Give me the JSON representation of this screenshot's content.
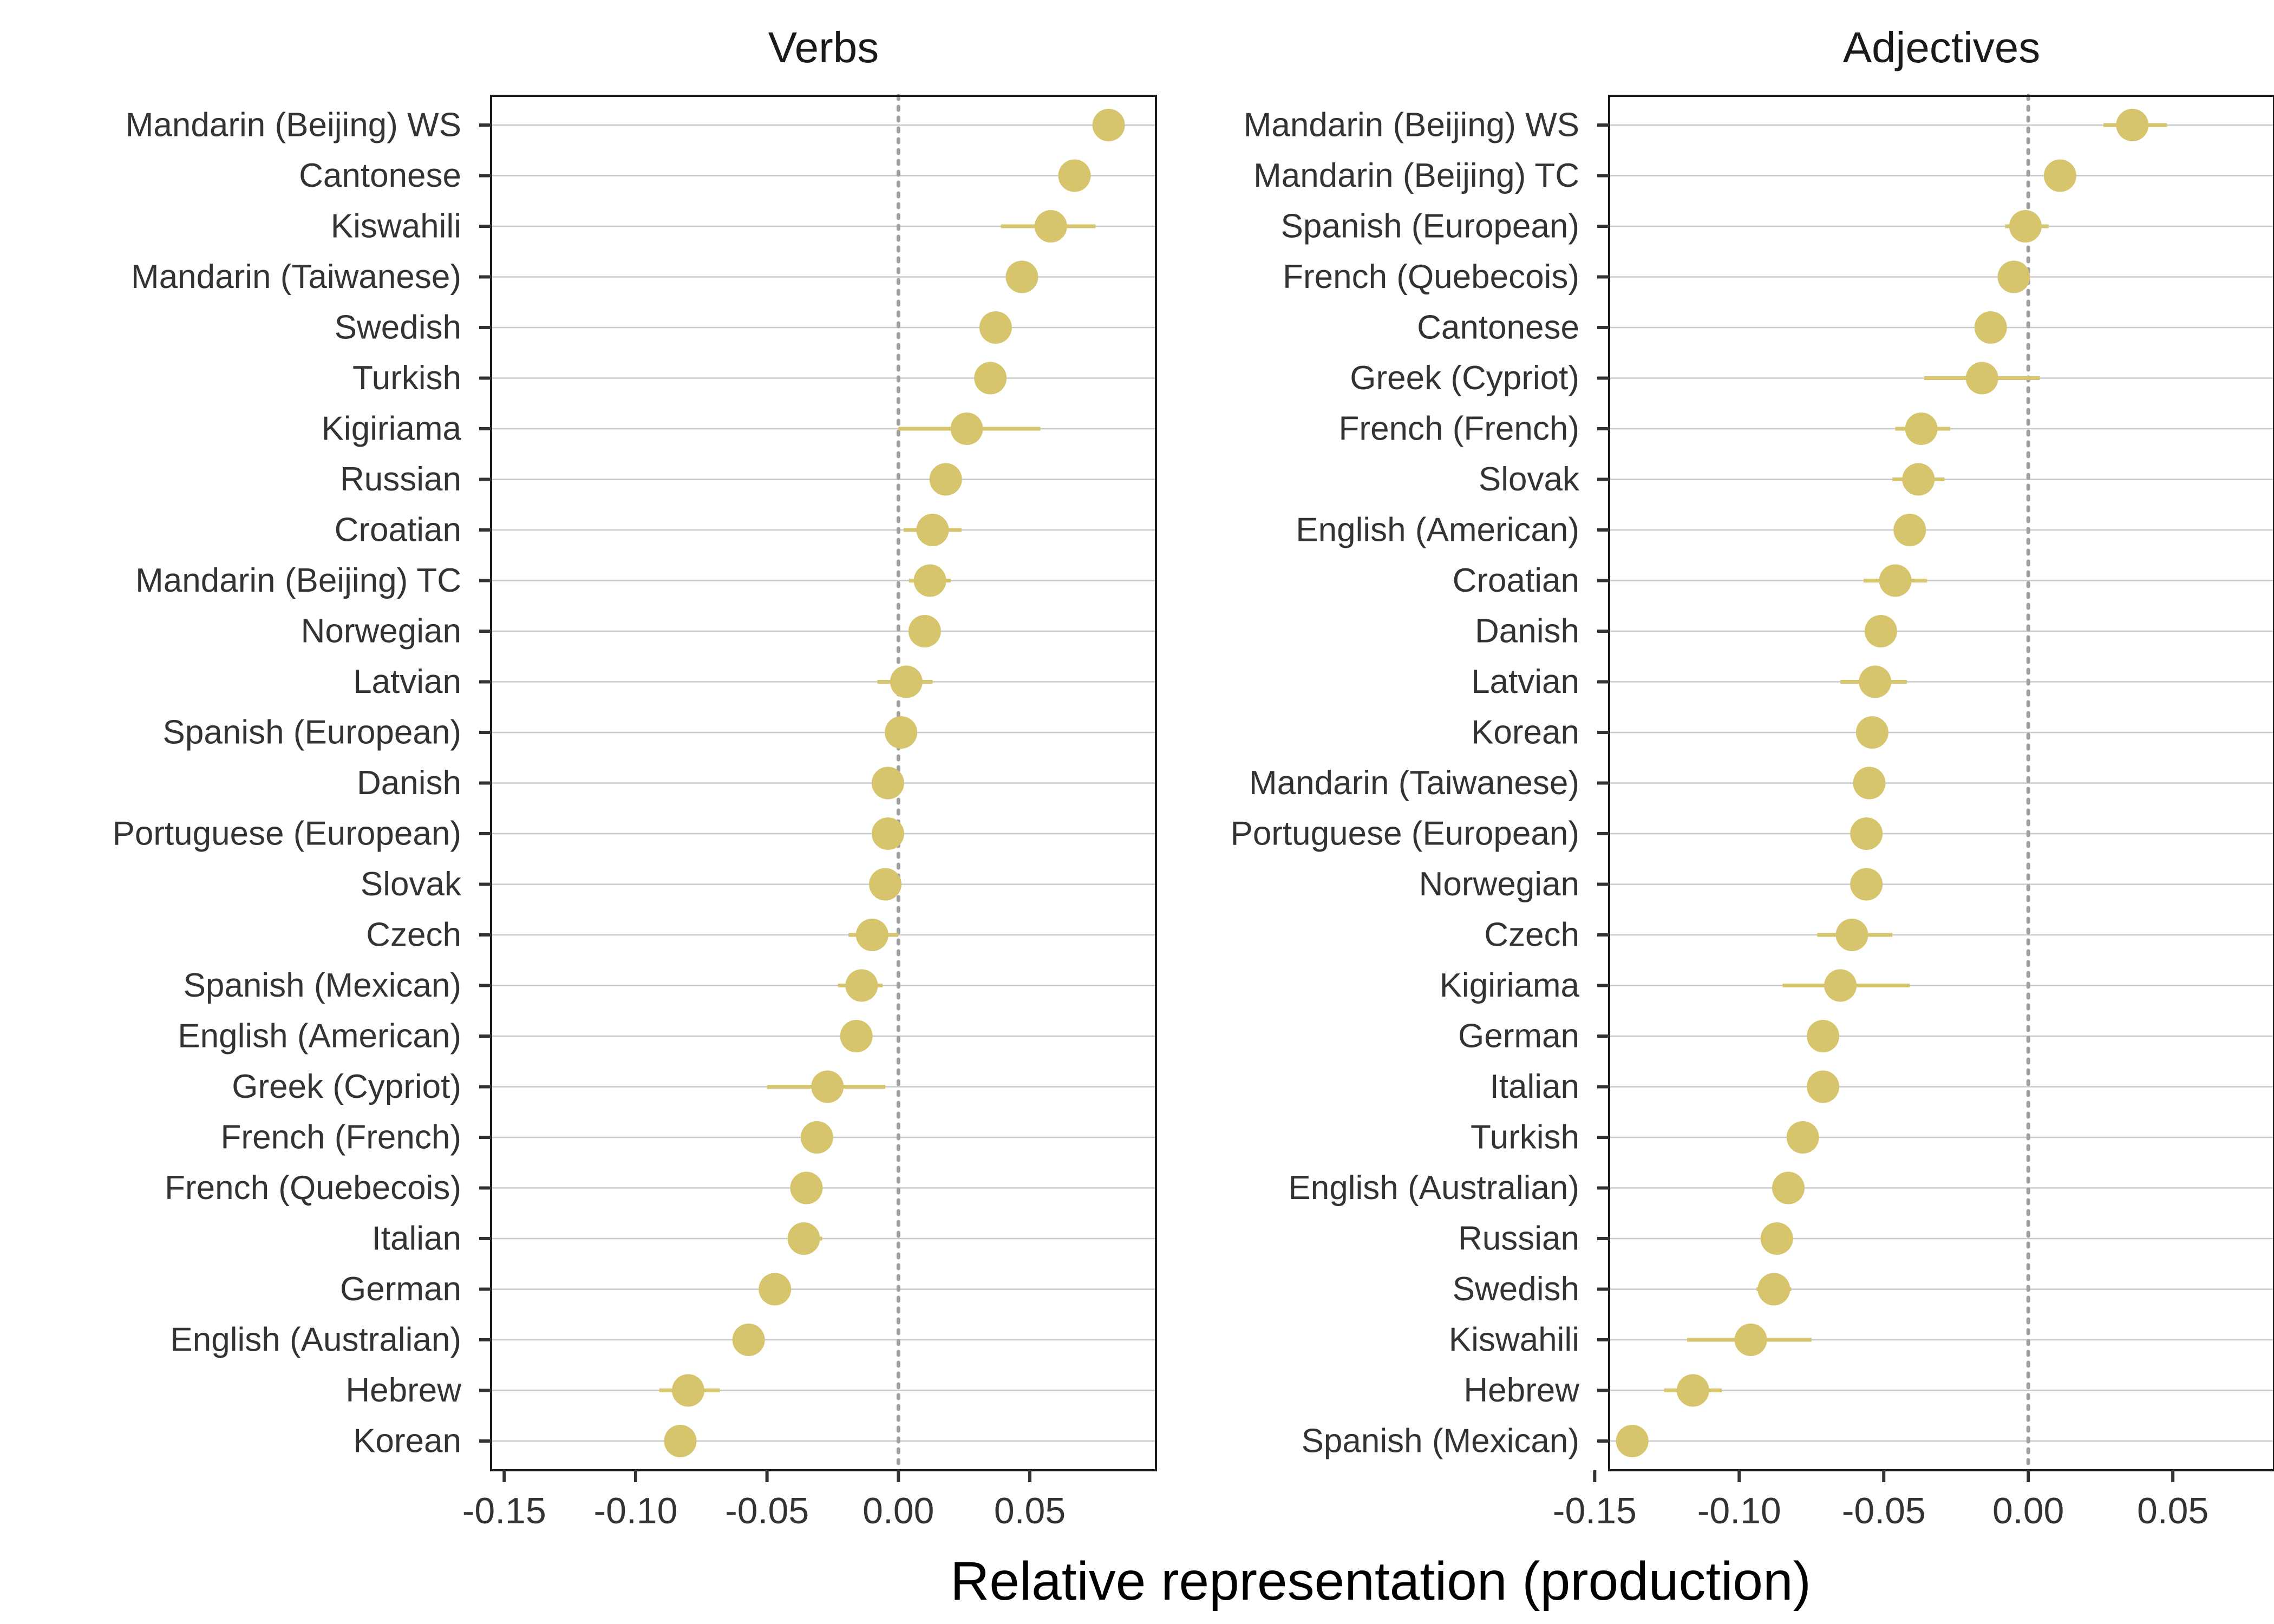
{
  "chart_data": {
    "type": "scatter",
    "xlabel": "Relative representation (production)",
    "x_ticks": [
      -0.15,
      -0.1,
      -0.05,
      0.0,
      0.05
    ],
    "x_tick_labels": [
      "-0.15",
      "-0.10",
      "-0.05",
      "0.00",
      "0.05"
    ],
    "reference_line_x": 0.0,
    "point_color": "#d6c56c",
    "panels": [
      {
        "title": "Verbs",
        "xlim": [
          -0.155,
          0.098
        ],
        "categories": [
          "Mandarin (Beijing) WS",
          "Cantonese",
          "Kiswahili",
          "Mandarin (Taiwanese)",
          "Swedish",
          "Turkish",
          "Kigiriama",
          "Russian",
          "Croatian",
          "Mandarin (Beijing) TC",
          "Norwegian",
          "Latvian",
          "Spanish (European)",
          "Danish",
          "Portuguese (European)",
          "Slovak",
          "Czech",
          "Spanish (Mexican)",
          "English (American)",
          "Greek (Cypriot)",
          "French (French)",
          "French (Quebecois)",
          "Italian",
          "German",
          "English (Australian)",
          "Hebrew",
          "Korean"
        ],
        "values": [
          0.08,
          0.067,
          0.058,
          0.047,
          0.037,
          0.035,
          0.026,
          0.018,
          0.013,
          0.012,
          0.01,
          0.003,
          0.001,
          -0.004,
          -0.004,
          -0.005,
          -0.01,
          -0.014,
          -0.016,
          -0.027,
          -0.031,
          -0.035,
          -0.036,
          -0.047,
          -0.057,
          -0.08,
          -0.083
        ],
        "lower": [
          0.074,
          0.065,
          0.039,
          0.045,
          0.035,
          0.033,
          0.0,
          0.016,
          0.002,
          0.004,
          0.008,
          -0.008,
          -0.004,
          -0.006,
          -0.006,
          -0.008,
          -0.019,
          -0.023,
          -0.018,
          -0.05,
          -0.037,
          -0.037,
          -0.042,
          -0.049,
          -0.059,
          -0.091,
          -0.085
        ],
        "upper": [
          0.086,
          0.069,
          0.075,
          0.049,
          0.039,
          0.037,
          0.054,
          0.02,
          0.024,
          0.02,
          0.012,
          0.013,
          0.006,
          -0.002,
          -0.002,
          -0.002,
          0.0,
          -0.006,
          -0.014,
          -0.005,
          -0.025,
          -0.033,
          -0.029,
          -0.045,
          -0.055,
          -0.068,
          -0.081
        ]
      },
      {
        "title": "Adjectives",
        "xlim": [
          -0.145,
          0.085
        ],
        "categories": [
          "Mandarin (Beijing) WS",
          "Mandarin (Beijing) TC",
          "Spanish (European)",
          "French (Quebecois)",
          "Cantonese",
          "Greek (Cypriot)",
          "French (French)",
          "Slovak",
          "English (American)",
          "Croatian",
          "Danish",
          "Latvian",
          "Korean",
          "Mandarin (Taiwanese)",
          "Portuguese (European)",
          "Norwegian",
          "Czech",
          "Kigiriama",
          "German",
          "Italian",
          "Turkish",
          "English (Australian)",
          "Russian",
          "Swedish",
          "Kiswahili",
          "Hebrew",
          "Spanish (Mexican)"
        ],
        "values": [
          0.036,
          0.011,
          -0.001,
          -0.005,
          -0.013,
          -0.016,
          -0.037,
          -0.038,
          -0.041,
          -0.046,
          -0.051,
          -0.053,
          -0.054,
          -0.055,
          -0.056,
          -0.056,
          -0.061,
          -0.065,
          -0.071,
          -0.071,
          -0.078,
          -0.083,
          -0.087,
          -0.088,
          -0.096,
          -0.116,
          -0.137
        ],
        "lower": [
          0.026,
          0.006,
          -0.008,
          -0.007,
          -0.015,
          -0.036,
          -0.046,
          -0.047,
          -0.043,
          -0.057,
          -0.053,
          -0.065,
          -0.058,
          -0.057,
          -0.058,
          -0.058,
          -0.073,
          -0.085,
          -0.073,
          -0.075,
          -0.08,
          -0.086,
          -0.089,
          -0.094,
          -0.118,
          -0.126,
          -0.139
        ],
        "upper": [
          0.048,
          0.016,
          0.007,
          -0.003,
          -0.011,
          0.004,
          -0.027,
          -0.029,
          -0.039,
          -0.035,
          -0.049,
          -0.042,
          -0.049,
          -0.053,
          -0.054,
          -0.054,
          -0.047,
          -0.041,
          -0.069,
          -0.067,
          -0.076,
          -0.08,
          -0.085,
          -0.082,
          -0.075,
          -0.106,
          -0.135
        ]
      }
    ]
  }
}
